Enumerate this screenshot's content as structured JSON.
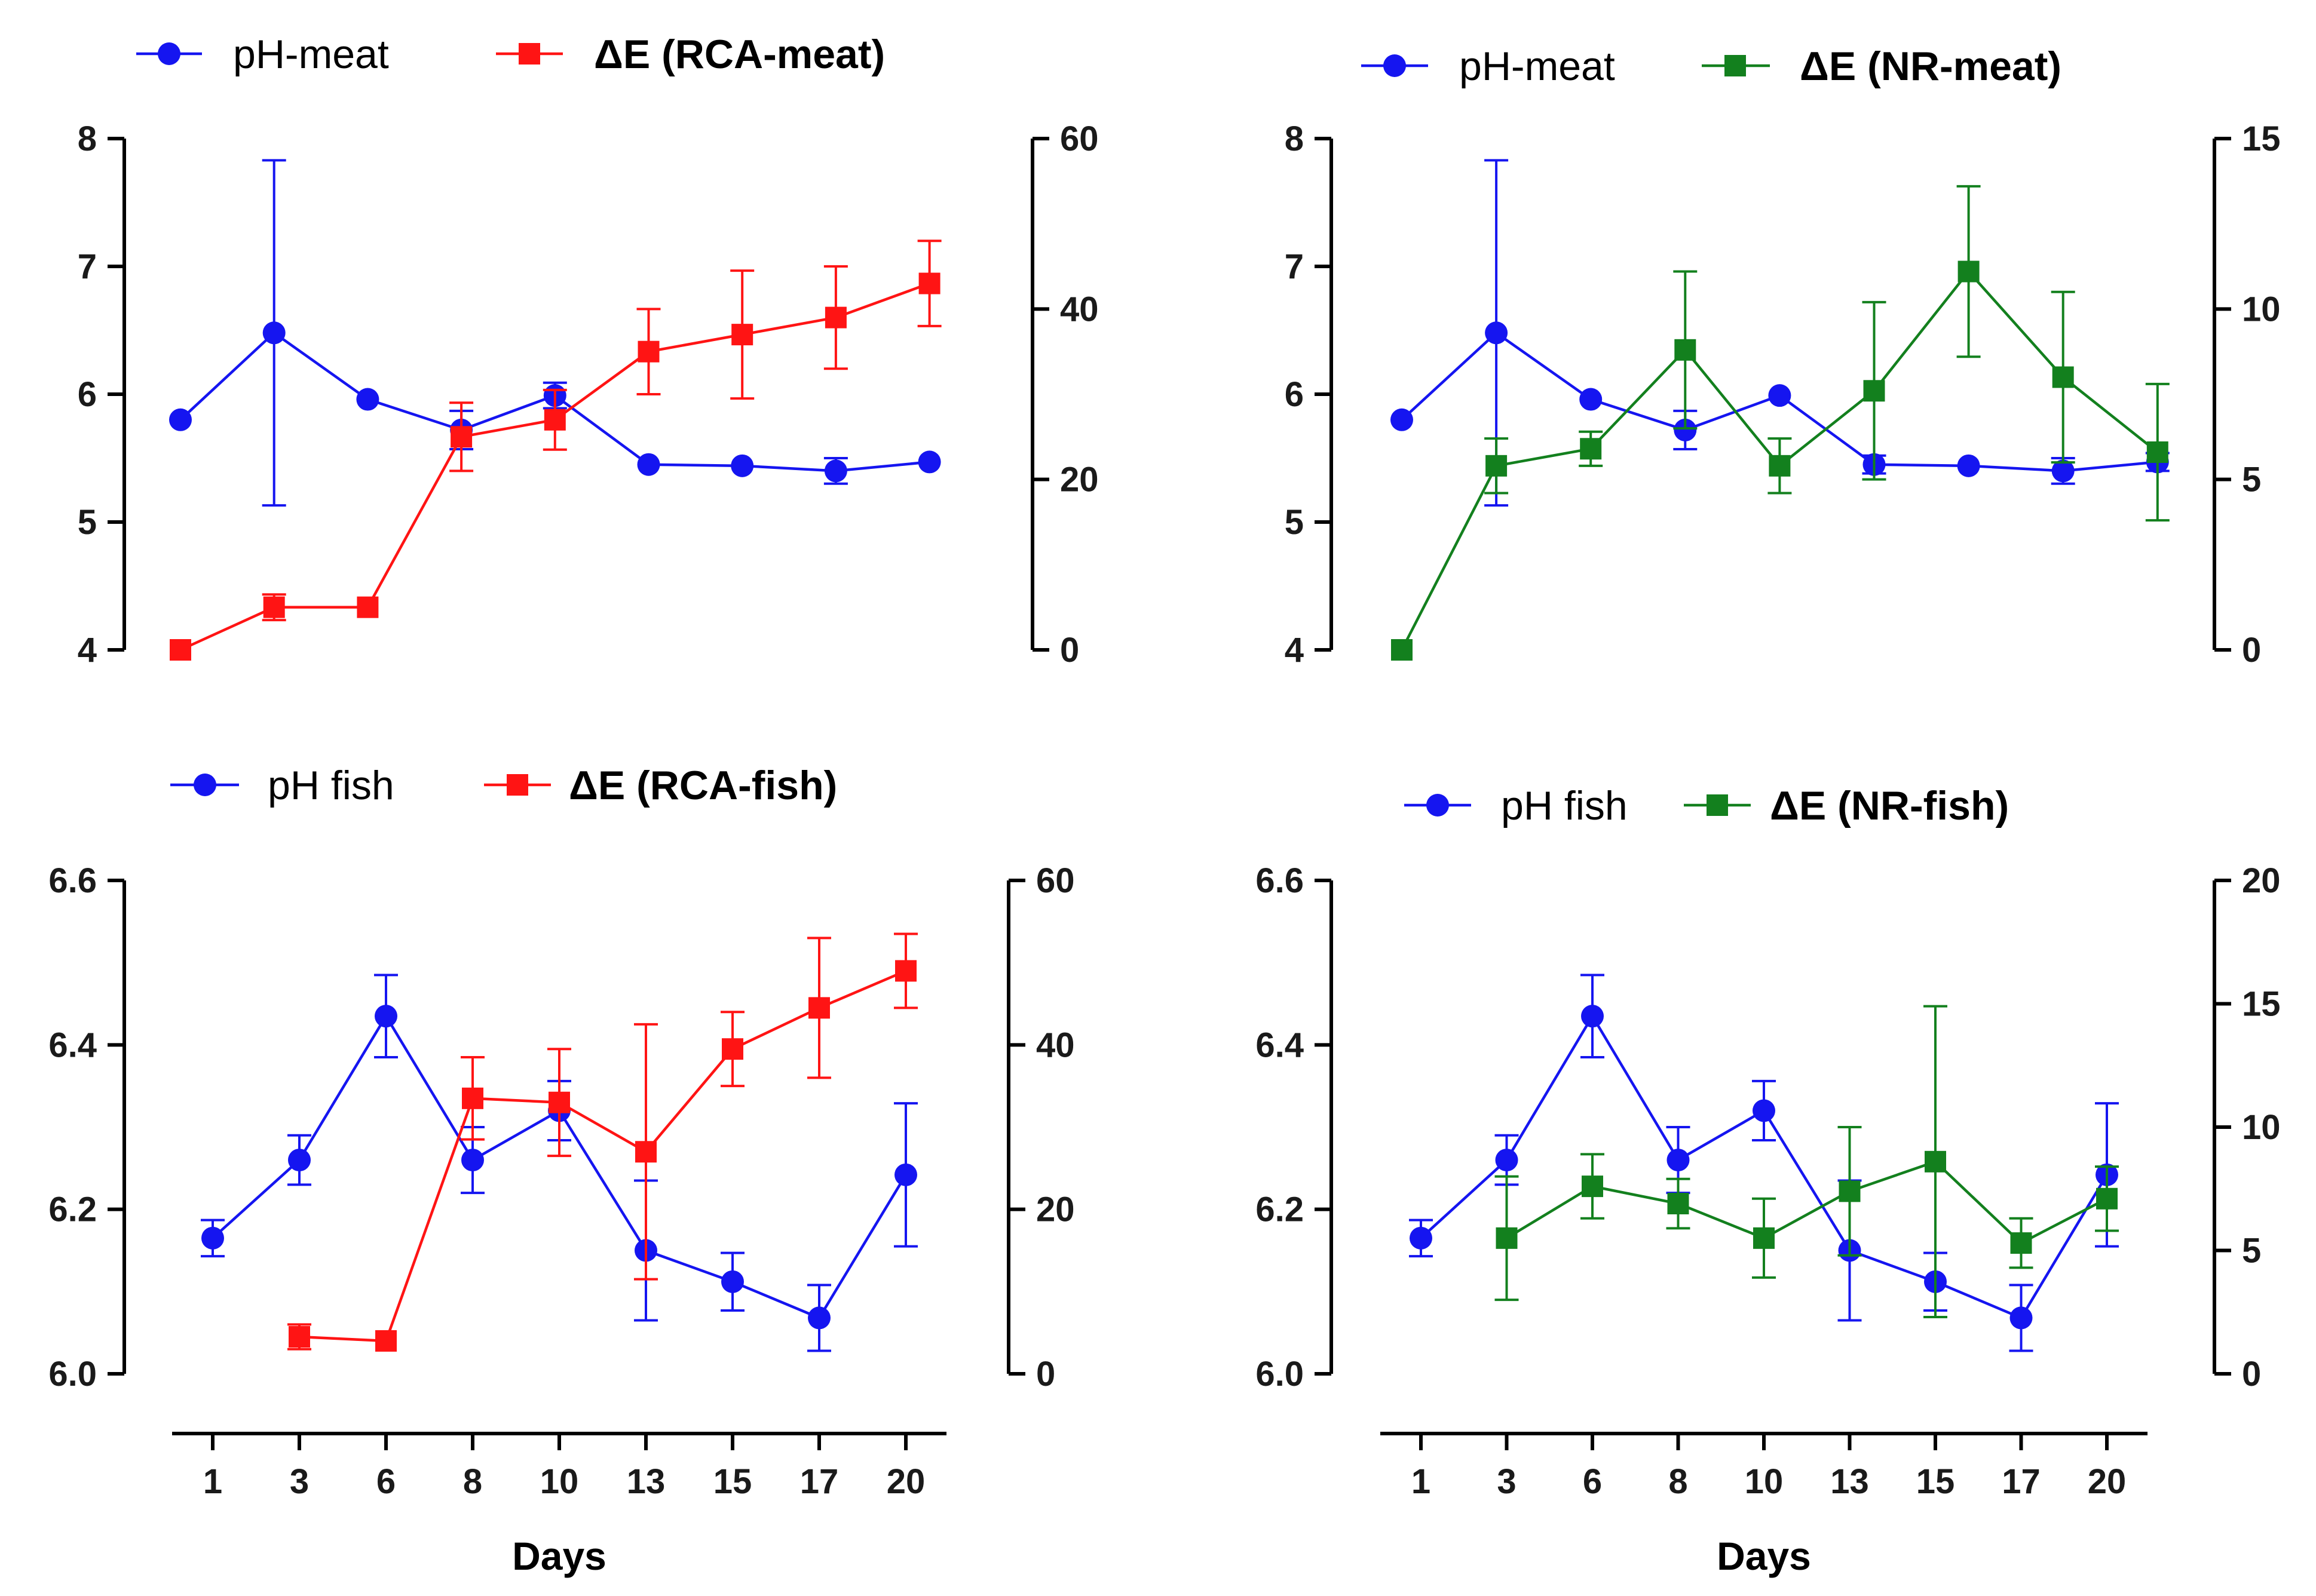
{
  "chart_data": [
    {
      "type": "line",
      "panel": "top-left",
      "x_categories": [
        "1",
        "3",
        "6",
        "8",
        "10",
        "13",
        "15",
        "17",
        "20"
      ],
      "left_axis": {
        "ylim": [
          4,
          8
        ],
        "ticks": [
          "4",
          "5",
          "6",
          "7",
          "8"
        ]
      },
      "right_axis": {
        "ylim": [
          0,
          60
        ],
        "ticks": [
          "0",
          "20",
          "40",
          "60"
        ]
      },
      "legend": [
        {
          "text": "pH-meat",
          "bold": false
        },
        {
          "text": "ΔE (RCA-meat)",
          "bold": true
        }
      ],
      "series": [
        {
          "name": "pH-meat",
          "axis": "left",
          "color": "#1515f0",
          "marker": "circle",
          "values": [
            5.8,
            6.48,
            5.96,
            5.72,
            5.99,
            5.45,
            5.44,
            5.4,
            5.47
          ],
          "errors": [
            0,
            1.35,
            0,
            0.15,
            0.1,
            0,
            0,
            0.1,
            0
          ]
        },
        {
          "name": "ΔE (RCA-meat)",
          "axis": "right",
          "color": "#ff1414",
          "marker": "square",
          "values": [
            0,
            5,
            5,
            25,
            27,
            35,
            37,
            39,
            43
          ],
          "errors": [
            0,
            1.5,
            0,
            4,
            3.5,
            5,
            7.5,
            6,
            5
          ]
        }
      ]
    },
    {
      "type": "line",
      "panel": "top-right",
      "x_categories": [
        "1",
        "3",
        "6",
        "8",
        "10",
        "13",
        "15",
        "17",
        "20"
      ],
      "left_axis": {
        "ylim": [
          4,
          8
        ],
        "ticks": [
          "4",
          "5",
          "6",
          "7",
          "8"
        ]
      },
      "right_axis": {
        "ylim": [
          0,
          15
        ],
        "ticks": [
          "0",
          "5",
          "10",
          "15"
        ]
      },
      "legend": [
        {
          "text": "pH-meat",
          "bold": false
        },
        {
          "text": "ΔE (NR-meat)",
          "bold": true
        }
      ],
      "series": [
        {
          "name": "pH-meat",
          "axis": "left",
          "color": "#1515f0",
          "marker": "circle",
          "values": [
            5.8,
            6.48,
            5.96,
            5.72,
            5.99,
            5.45,
            5.44,
            5.4,
            5.47
          ],
          "errors": [
            0,
            1.35,
            0,
            0.15,
            0,
            0.07,
            0,
            0.1,
            0.07
          ]
        },
        {
          "name": "ΔE (NR-meat)",
          "axis": "right",
          "color": "#13801e",
          "marker": "square",
          "values": [
            0,
            5.4,
            5.9,
            8.8,
            5.4,
            7.6,
            11.1,
            8.0,
            5.8
          ],
          "errors": [
            0,
            0.8,
            0.5,
            2.3,
            0.8,
            2.6,
            2.5,
            2.5,
            2.0
          ]
        }
      ]
    },
    {
      "type": "line",
      "panel": "bottom-left",
      "x_categories": [
        "1",
        "3",
        "6",
        "8",
        "10",
        "13",
        "15",
        "17",
        "20"
      ],
      "left_axis": {
        "ylim": [
          6.0,
          6.6
        ],
        "ticks": [
          "6.0",
          "6.2",
          "6.4",
          "6.6"
        ]
      },
      "right_axis": {
        "ylim": [
          0,
          60
        ],
        "ticks": [
          "0",
          "20",
          "40",
          "60"
        ]
      },
      "xlabel": "Days",
      "legend": [
        {
          "text": "pH fish",
          "bold": false
        },
        {
          "text": "ΔE (RCA-fish)",
          "bold": true
        }
      ],
      "series": [
        {
          "name": "pH fish",
          "axis": "left",
          "color": "#1515f0",
          "marker": "circle",
          "values": [
            6.165,
            6.26,
            6.435,
            6.26,
            6.32,
            6.15,
            6.112,
            6.068,
            6.242
          ],
          "errors": [
            0.022,
            0.03,
            0.05,
            0.04,
            0.036,
            0.085,
            0.035,
            0.04,
            0.087
          ]
        },
        {
          "name": "ΔE (RCA-fish)",
          "axis": "right",
          "color": "#ff1414",
          "marker": "square",
          "values": [
            null,
            4.5,
            4.0,
            33.5,
            33.0,
            27.0,
            39.5,
            44.5,
            49.0
          ],
          "errors": [
            0,
            1.5,
            0,
            5,
            6.5,
            15.5,
            4.5,
            8.5,
            4.5
          ]
        }
      ]
    },
    {
      "type": "line",
      "panel": "bottom-right",
      "x_categories": [
        "1",
        "3",
        "6",
        "8",
        "10",
        "13",
        "15",
        "17",
        "20"
      ],
      "left_axis": {
        "ylim": [
          6.0,
          6.6
        ],
        "ticks": [
          "6.0",
          "6.2",
          "6.4",
          "6.6"
        ]
      },
      "right_axis": {
        "ylim": [
          0,
          20
        ],
        "ticks": [
          "0",
          "5",
          "10",
          "15",
          "20"
        ]
      },
      "xlabel": "Days",
      "legend": [
        {
          "text": "pH fish",
          "bold": false
        },
        {
          "text": "ΔE (NR-fish)",
          "bold": true
        }
      ],
      "series": [
        {
          "name": "pH fish",
          "axis": "left",
          "color": "#1515f0",
          "marker": "circle",
          "values": [
            6.165,
            6.26,
            6.435,
            6.26,
            6.32,
            6.15,
            6.112,
            6.068,
            6.242
          ],
          "errors": [
            0.022,
            0.03,
            0.05,
            0.04,
            0.036,
            0.085,
            0.035,
            0.04,
            0.087
          ]
        },
        {
          "name": "ΔE (NR-fish)",
          "axis": "right",
          "color": "#13801e",
          "marker": "square",
          "values": [
            null,
            5.5,
            7.6,
            6.9,
            5.5,
            7.4,
            8.6,
            5.3,
            7.1
          ],
          "errors": [
            0,
            2.5,
            1.3,
            1.0,
            1.6,
            2.6,
            6.3,
            1.0,
            1.3
          ]
        }
      ]
    }
  ]
}
